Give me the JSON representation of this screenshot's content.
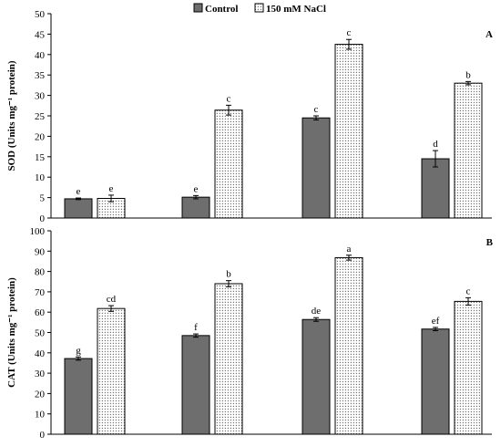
{
  "chart_data": [
    {
      "type": "bar",
      "panel": "A",
      "ylabel": "SOD (Units mg⁻¹ protein)",
      "ylim": [
        0,
        50
      ],
      "yticks": [
        0,
        5,
        10,
        15,
        20,
        25,
        30,
        35,
        40,
        45,
        50
      ],
      "groups": 4,
      "legend_position": "top-center",
      "series": [
        {
          "name": "Control",
          "color": "#6e6e6e",
          "pattern": "solid",
          "values": [
            4.7,
            5.1,
            24.5,
            14.5
          ],
          "errors": [
            0.2,
            0.4,
            0.5,
            2.0
          ],
          "letters": [
            "e",
            "e",
            "c",
            "d"
          ]
        },
        {
          "name": "150 mM NaCl",
          "color": "#ffffff",
          "pattern": "dotted",
          "values": [
            4.8,
            26.4,
            42.5,
            33.0
          ],
          "errors": [
            0.8,
            1.2,
            1.2,
            0.4
          ],
          "letters": [
            "e",
            "c",
            "c",
            "b"
          ]
        }
      ]
    },
    {
      "type": "bar",
      "panel": "B",
      "ylabel": "CAT (Units mg⁻¹ protein)",
      "ylim": [
        0,
        100
      ],
      "yticks": [
        0,
        10,
        20,
        30,
        40,
        50,
        60,
        70,
        80,
        90,
        100
      ],
      "groups": 4,
      "series": [
        {
          "name": "Control",
          "color": "#6e6e6e",
          "pattern": "solid",
          "values": [
            37.2,
            48.5,
            56.4,
            51.7
          ],
          "errors": [
            0.8,
            0.8,
            0.9,
            0.8
          ],
          "letters": [
            "g",
            "f",
            "de",
            "ef"
          ]
        },
        {
          "name": "150 mM NaCl",
          "color": "#ffffff",
          "pattern": "dotted",
          "values": [
            61.8,
            74.0,
            86.8,
            65.3
          ],
          "errors": [
            1.4,
            1.5,
            1.2,
            1.8
          ],
          "letters": [
            "cd",
            "b",
            "a",
            "c"
          ]
        }
      ]
    }
  ]
}
